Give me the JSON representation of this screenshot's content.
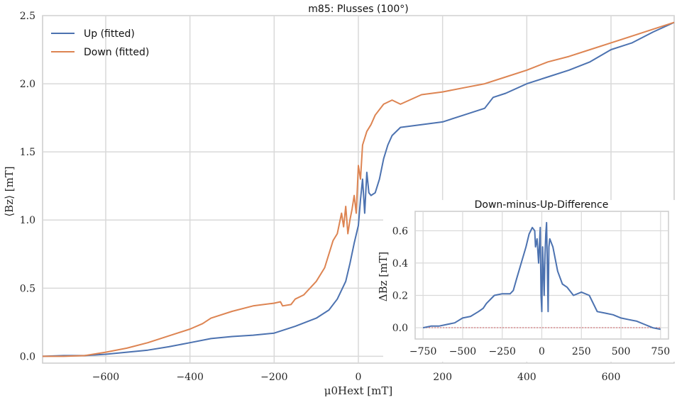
{
  "chart_data": [
    {
      "type": "line",
      "title": "m85: Plusses (100°)",
      "xlabel": "μ0Hext [mT]",
      "ylabel": "⟨Bz⟩ [mT]",
      "xlim": [
        -750,
        750
      ],
      "ylim": [
        -0.05,
        2.5
      ],
      "xticks": [
        -600,
        -400,
        -200,
        0,
        200,
        400,
        600
      ],
      "yticks": [
        0.0,
        0.5,
        1.0,
        1.5,
        2.0,
        2.5
      ],
      "grid": true,
      "legend_position": "top-left",
      "series": [
        {
          "name": "Up (fitted)",
          "color": "#4c72b0",
          "points": [
            [
              -750,
              0.0
            ],
            [
              -700,
              0.005
            ],
            [
              -650,
              0.005
            ],
            [
              -600,
              0.015
            ],
            [
              -550,
              0.03
            ],
            [
              -500,
              0.045
            ],
            [
              -450,
              0.07
            ],
            [
              -400,
              0.1
            ],
            [
              -350,
              0.13
            ],
            [
              -300,
              0.145
            ],
            [
              -250,
              0.155
            ],
            [
              -200,
              0.17
            ],
            [
              -150,
              0.22
            ],
            [
              -100,
              0.28
            ],
            [
              -70,
              0.34
            ],
            [
              -50,
              0.42
            ],
            [
              -30,
              0.55
            ],
            [
              -20,
              0.68
            ],
            [
              -10,
              0.83
            ],
            [
              0,
              0.96
            ],
            [
              5,
              1.15
            ],
            [
              10,
              1.3
            ],
            [
              15,
              1.05
            ],
            [
              20,
              1.35
            ],
            [
              25,
              1.2
            ],
            [
              30,
              1.18
            ],
            [
              40,
              1.2
            ],
            [
              50,
              1.3
            ],
            [
              60,
              1.45
            ],
            [
              70,
              1.55
            ],
            [
              80,
              1.62
            ],
            [
              100,
              1.68
            ],
            [
              150,
              1.7
            ],
            [
              200,
              1.72
            ],
            [
              250,
              1.77
            ],
            [
              300,
              1.82
            ],
            [
              320,
              1.9
            ],
            [
              350,
              1.93
            ],
            [
              400,
              2.0
            ],
            [
              450,
              2.05
            ],
            [
              500,
              2.1
            ],
            [
              550,
              2.16
            ],
            [
              600,
              2.25
            ],
            [
              650,
              2.3
            ],
            [
              700,
              2.38
            ],
            [
              750,
              2.45
            ]
          ]
        },
        {
          "name": "Down (fitted)",
          "color": "#dd8452",
          "points": [
            [
              -750,
              0.0
            ],
            [
              -700,
              0.0
            ],
            [
              -650,
              0.005
            ],
            [
              -600,
              0.03
            ],
            [
              -550,
              0.06
            ],
            [
              -500,
              0.1
            ],
            [
              -450,
              0.15
            ],
            [
              -400,
              0.2
            ],
            [
              -370,
              0.24
            ],
            [
              -350,
              0.28
            ],
            [
              -300,
              0.33
            ],
            [
              -250,
              0.37
            ],
            [
              -200,
              0.39
            ],
            [
              -185,
              0.4
            ],
            [
              -180,
              0.37
            ],
            [
              -160,
              0.38
            ],
            [
              -150,
              0.42
            ],
            [
              -130,
              0.45
            ],
            [
              -100,
              0.55
            ],
            [
              -80,
              0.65
            ],
            [
              -60,
              0.85
            ],
            [
              -50,
              0.9
            ],
            [
              -40,
              1.05
            ],
            [
              -35,
              0.95
            ],
            [
              -30,
              1.1
            ],
            [
              -25,
              0.9
            ],
            [
              -20,
              1.0
            ],
            [
              -15,
              1.08
            ],
            [
              -10,
              1.18
            ],
            [
              -5,
              1.05
            ],
            [
              0,
              1.4
            ],
            [
              5,
              1.3
            ],
            [
              10,
              1.55
            ],
            [
              15,
              1.6
            ],
            [
              20,
              1.65
            ],
            [
              30,
              1.7
            ],
            [
              40,
              1.77
            ],
            [
              60,
              1.85
            ],
            [
              80,
              1.88
            ],
            [
              100,
              1.85
            ],
            [
              150,
              1.92
            ],
            [
              200,
              1.94
            ],
            [
              250,
              1.97
            ],
            [
              300,
              2.0
            ],
            [
              350,
              2.05
            ],
            [
              400,
              2.1
            ],
            [
              450,
              2.16
            ],
            [
              500,
              2.2
            ],
            [
              550,
              2.25
            ],
            [
              600,
              2.3
            ],
            [
              650,
              2.35
            ],
            [
              700,
              2.4
            ],
            [
              750,
              2.45
            ]
          ]
        }
      ]
    },
    {
      "type": "line",
      "title": "Down-minus-Up-Difference",
      "ylabel": "ΔBz [mT]",
      "xlim": [
        -800,
        800
      ],
      "ylim": [
        -0.07,
        0.72
      ],
      "xticks": [
        -750,
        -500,
        -250,
        0,
        250,
        500,
        750
      ],
      "xtick_labels": [
        "−750",
        "−500",
        "−250",
        "0",
        "250",
        "500",
        "750"
      ],
      "yticks": [
        0.0,
        0.2,
        0.4,
        0.6
      ],
      "grid": true,
      "baseline_color": "#c44e52",
      "series": [
        {
          "color": "#4c72b0",
          "points": [
            [
              -750,
              0.0
            ],
            [
              -700,
              0.01
            ],
            [
              -650,
              0.01
            ],
            [
              -600,
              0.02
            ],
            [
              -550,
              0.03
            ],
            [
              -500,
              0.06
            ],
            [
              -450,
              0.07
            ],
            [
              -400,
              0.1
            ],
            [
              -370,
              0.12
            ],
            [
              -350,
              0.15
            ],
            [
              -300,
              0.2
            ],
            [
              -250,
              0.21
            ],
            [
              -200,
              0.21
            ],
            [
              -180,
              0.23
            ],
            [
              -160,
              0.3
            ],
            [
              -130,
              0.4
            ],
            [
              -100,
              0.5
            ],
            [
              -80,
              0.58
            ],
            [
              -60,
              0.62
            ],
            [
              -45,
              0.6
            ],
            [
              -40,
              0.5
            ],
            [
              -30,
              0.55
            ],
            [
              -20,
              0.4
            ],
            [
              -10,
              0.62
            ],
            [
              -5,
              0.2
            ],
            [
              0,
              0.1
            ],
            [
              5,
              0.5
            ],
            [
              10,
              0.35
            ],
            [
              15,
              0.2
            ],
            [
              20,
              0.45
            ],
            [
              25,
              0.58
            ],
            [
              30,
              0.65
            ],
            [
              40,
              0.1
            ],
            [
              45,
              0.5
            ],
            [
              50,
              0.55
            ],
            [
              70,
              0.5
            ],
            [
              100,
              0.35
            ],
            [
              130,
              0.27
            ],
            [
              160,
              0.25
            ],
            [
              200,
              0.2
            ],
            [
              250,
              0.22
            ],
            [
              300,
              0.2
            ],
            [
              350,
              0.1
            ],
            [
              400,
              0.09
            ],
            [
              450,
              0.08
            ],
            [
              500,
              0.06
            ],
            [
              550,
              0.05
            ],
            [
              600,
              0.04
            ],
            [
              650,
              0.02
            ],
            [
              700,
              0.0
            ],
            [
              750,
              -0.01
            ]
          ]
        }
      ]
    }
  ]
}
